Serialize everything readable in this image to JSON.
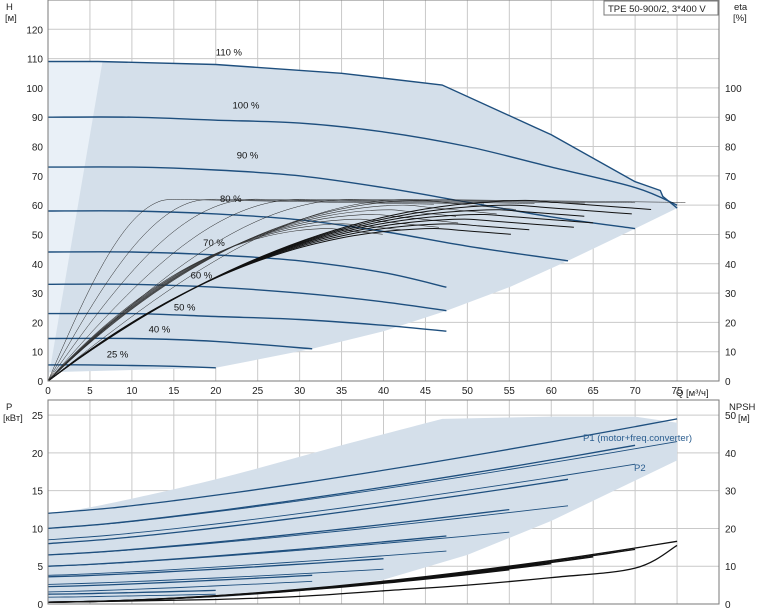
{
  "chart_data": [
    {
      "type": "line",
      "title": "TPE 50-900/2, 3*400 V",
      "xlabel": "Q [м³/ч]",
      "ylabel": "H [м]",
      "y2label": "eta [%]",
      "xlim": [
        0,
        80
      ],
      "ylim": [
        0,
        130
      ],
      "y2lim": [
        0,
        130
      ],
      "xticks": [
        0,
        5,
        10,
        15,
        20,
        25,
        30,
        35,
        40,
        45,
        50,
        55,
        60,
        65,
        70,
        75
      ],
      "yticks": [
        0,
        10,
        20,
        30,
        40,
        50,
        60,
        70,
        80,
        90,
        100,
        110,
        120
      ],
      "y2ticks": [
        0,
        10,
        20,
        30,
        40,
        50,
        60,
        70,
        80,
        90,
        100
      ],
      "grid": true,
      "series": [
        {
          "name": "110 %",
          "x": [
            0,
            6,
            20,
            35,
            47,
            60,
            70,
            73,
            73.3,
            75
          ],
          "y": [
            109,
            109,
            108,
            105,
            101,
            84,
            68,
            65,
            63,
            59
          ]
        },
        {
          "name": "100 %",
          "x": [
            0,
            10,
            20,
            30,
            40,
            50,
            60,
            70,
            75
          ],
          "y": [
            90,
            90,
            89,
            88,
            85,
            80,
            73,
            66,
            60
          ]
        },
        {
          "name": "90 %",
          "x": [
            0,
            10,
            20,
            30,
            40,
            50,
            60,
            70
          ],
          "y": [
            73,
            73,
            72,
            70,
            66,
            61,
            56,
            52
          ]
        },
        {
          "name": "80 %",
          "x": [
            0,
            10,
            20,
            30,
            40,
            50,
            62
          ],
          "y": [
            58,
            58,
            57,
            55,
            51,
            46,
            41
          ]
        },
        {
          "name": "70 %",
          "x": [
            0,
            10,
            20,
            30,
            40,
            47.5
          ],
          "y": [
            44,
            44,
            43,
            41,
            37,
            32
          ]
        },
        {
          "name": "60 %",
          "x": [
            0,
            10,
            20,
            30,
            40,
            47.5
          ],
          "y": [
            33,
            33,
            32,
            30,
            27,
            24
          ]
        },
        {
          "name": "50 %",
          "x": [
            0,
            10,
            20,
            30,
            40,
            47.5
          ],
          "y": [
            23,
            23,
            22,
            21,
            19,
            17
          ]
        },
        {
          "name": "40 %",
          "x": [
            0,
            10,
            20,
            31.5
          ],
          "y": [
            14.5,
            14.5,
            13.5,
            11
          ]
        },
        {
          "name": "25 %",
          "x": [
            0,
            5,
            10,
            15,
            20
          ],
          "y": [
            5.5,
            5.5,
            5.3,
            5,
            4.5
          ]
        }
      ]
    },
    {
      "type": "line",
      "ylabel": "P [кВт]",
      "y2label": "NPSH [м]",
      "xlim": [
        0,
        80
      ],
      "ylim": [
        0,
        27
      ],
      "y2lim": [
        0,
        54
      ],
      "yticks": [
        0,
        5,
        10,
        15,
        20,
        25
      ],
      "y2ticks": [
        0,
        10,
        20,
        30,
        40,
        50
      ],
      "grid": true,
      "annotations": [
        "P1 (motor+freq.converter)",
        "P2"
      ],
      "series": [
        {
          "name": "P1 (motor+freq.converter)",
          "x": [
            0,
            6,
            20,
            35,
            47,
            60,
            70,
            75
          ],
          "y": [
            12,
            13,
            16.5,
            21,
            24.5,
            24.8,
            24.8,
            24
          ]
        },
        {
          "name": "P2",
          "x": [
            0,
            6,
            20,
            35,
            47,
            60,
            70,
            75
          ],
          "y": [
            10,
            11,
            15,
            19.5,
            22,
            22,
            22,
            21
          ]
        },
        {
          "name": "NPSH",
          "x": [
            0,
            10,
            20,
            30,
            40,
            50,
            60,
            70,
            75
          ],
          "y": [
            0.5,
            0.8,
            1.2,
            2,
            3.5,
            5,
            7,
            9.5,
            15.5
          ]
        }
      ]
    }
  ]
}
